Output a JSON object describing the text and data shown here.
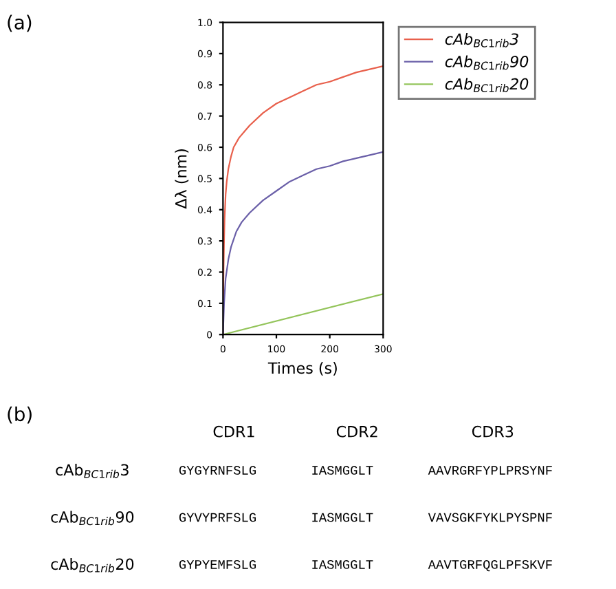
{
  "chart_data": {
    "type": "line",
    "xlabel": "Times (s)",
    "ylabel": "Δλ (nm)",
    "xlim": [
      0,
      300
    ],
    "ylim": [
      0,
      1.0
    ],
    "xticks": [
      0,
      100,
      200,
      300
    ],
    "yticks": [
      0,
      0.1,
      0.2,
      0.3,
      0.4,
      0.5,
      0.6,
      0.7,
      0.8,
      0.9,
      {
        "value": 1.0,
        "label": "1.0"
      }
    ],
    "grid": false,
    "legend": "top right",
    "marker": "none",
    "line_style": "solid",
    "series": [
      {
        "name": "cAb$_{BC1rib}$3",
        "color": "#e8604c",
        "x": [
          0,
          1,
          2,
          3,
          5,
          7,
          10,
          15,
          20,
          30,
          40,
          50,
          75,
          100,
          125,
          150,
          175,
          200,
          225,
          250,
          275,
          300
        ],
        "values": [
          0,
          0.2,
          0.3,
          0.37,
          0.45,
          0.49,
          0.53,
          0.57,
          0.6,
          0.63,
          0.65,
          0.67,
          0.71,
          0.74,
          0.76,
          0.78,
          0.8,
          0.81,
          0.825,
          0.84,
          0.85,
          0.86
        ]
      },
      {
        "name": "cAb$_{BC1rib}$90",
        "color": "#6a5fa8",
        "x": [
          0,
          2,
          5,
          10,
          15,
          25,
          35,
          50,
          75,
          100,
          125,
          150,
          175,
          200,
          225,
          250,
          275,
          300
        ],
        "values": [
          0,
          0.1,
          0.18,
          0.24,
          0.28,
          0.33,
          0.36,
          0.39,
          0.43,
          0.46,
          0.49,
          0.51,
          0.53,
          0.54,
          0.555,
          0.565,
          0.575,
          0.585
        ]
      },
      {
        "name": "cAb$_{BC1rib}$20",
        "color": "#93c45a",
        "x": [
          0,
          300
        ],
        "values": [
          0,
          0.13
        ]
      }
    ],
    "annotations": [
      "(a)",
      "(b)",
      "CDR1",
      "CDR2",
      "CDR3",
      "cAb$_{BC1rib}$3",
      "GYGYRNFSLG",
      "IASMGGLT",
      "AAVRGRFYPLPRSYNF",
      "cAb$_{BC1rib}$90",
      "GYVYPRFSLG",
      "IASMGGLT",
      "VAVSGKFYKLPYSPNF",
      "cAb$_{BC1rib}$20",
      "GYPYEMFSLG",
      "IASMGGLT",
      "AAVTGRFQGLPFSKVF"
    ]
  }
}
